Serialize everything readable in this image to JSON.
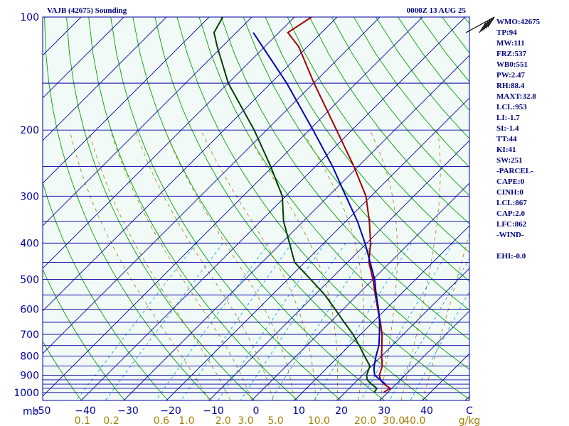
{
  "header": {
    "station": "VAJB (42675) Sounding",
    "time": "0000Z 13 AUG 25"
  },
  "indices": [
    "WMO:42675",
    "TP:94",
    "MW:111",
    "FRZ:537",
    "WB0:551",
    "PW:2.47",
    "RH:88.4",
    "MAXT:32.8",
    "LCL:953",
    "LI:-1.7",
    "SI:-1.4",
    "TT:44",
    "KI:41",
    "SW:251",
    "-PARCEL-",
    "CAPE:0",
    "CINH:0",
    "LCL:867",
    "CAP:2.0",
    "LFC:862",
    "-WIND-",
    "",
    "EHI:-0.0"
  ],
  "colors": {
    "background": "#f2faf8",
    "isobar": "#0000a0",
    "isotherm": "#0000a0",
    "dry_adiabat": "#00a000",
    "moist_adiabat": "#a08000",
    "mixing_ratio": "#00a0d0",
    "temperature": "#a00000",
    "dewpoint": "#004000",
    "parcel": "#0000b0",
    "tick_label": "#0000a0",
    "mixing_label": "#a08000"
  },
  "chart_data": {
    "type": "skew-t",
    "ylabel": "mb",
    "xlabel": "",
    "pressure_levels": [
      100,
      150,
      200,
      250,
      300,
      350,
      400,
      450,
      500,
      550,
      600,
      650,
      700,
      750,
      800,
      850,
      900,
      925,
      950,
      975,
      1000
    ],
    "pressure_tick_labels": [
      "100",
      "200",
      "300",
      "400",
      "500",
      "600",
      "700",
      "800",
      "900",
      "1000"
    ],
    "temperature_ticks": [
      -50,
      -40,
      -30,
      -20,
      -10,
      0,
      10,
      20,
      30,
      40
    ],
    "temperature_tick_labels": [
      "-50",
      "−40",
      "−30",
      "−20",
      "−10",
      "0",
      "10",
      "20",
      "30",
      "40"
    ],
    "end_tick_label": "C",
    "mixing_ratio_values": [
      0.1,
      0.2,
      0.6,
      1.0,
      2.0,
      3.0,
      5.0,
      10.0,
      20.0,
      30.0,
      40.0
    ],
    "mixing_ratio_labels": [
      "0.1",
      "0.2",
      "0.6",
      "1.0",
      "2.0",
      "3.0",
      "5.0",
      "10.0",
      "20.0",
      "30.0",
      "40.0"
    ],
    "mixing_ratio_unit": "g/kg",
    "temperature_unit": "C",
    "series": [
      {
        "name": "temperature",
        "points": [
          [
            1000,
            29.0
          ],
          [
            975,
            29.6
          ],
          [
            950,
            27.2
          ],
          [
            925,
            25.3
          ],
          [
            900,
            24.0
          ],
          [
            850,
            22.5
          ],
          [
            800,
            20.0
          ],
          [
            750,
            17.6
          ],
          [
            700,
            15.0
          ],
          [
            650,
            11.8
          ],
          [
            600,
            8.1
          ],
          [
            550,
            4.2
          ],
          [
            500,
            0.0
          ],
          [
            450,
            -5.0
          ],
          [
            400,
            -9.1
          ],
          [
            350,
            -14.5
          ],
          [
            300,
            -21.2
          ],
          [
            250,
            -31.0
          ],
          [
            200,
            -43.6
          ],
          [
            150,
            -59.9
          ],
          [
            120,
            -72.0
          ],
          [
            110,
            -77.9
          ],
          [
            100,
            -76.0
          ]
        ]
      },
      {
        "name": "dewpoint",
        "points": [
          [
            1000,
            26.8
          ],
          [
            975,
            26.5
          ],
          [
            950,
            24.2
          ],
          [
            925,
            22.2
          ],
          [
            900,
            21.0
          ],
          [
            850,
            19.6
          ],
          [
            800,
            16.0
          ],
          [
            750,
            12.3
          ],
          [
            700,
            8.2
          ],
          [
            650,
            3.3
          ],
          [
            600,
            -1.9
          ],
          [
            550,
            -7.6
          ],
          [
            500,
            -14.6
          ],
          [
            450,
            -22.4
          ],
          [
            400,
            -28.1
          ],
          [
            350,
            -34.6
          ],
          [
            300,
            -40.8
          ],
          [
            250,
            -50.5
          ],
          [
            200,
            -62.9
          ],
          [
            150,
            -80.0
          ],
          [
            120,
            -91.1
          ],
          [
            110,
            -95.2
          ],
          [
            100,
            -96.8
          ]
        ]
      },
      {
        "name": "parcel",
        "points": [
          [
            950,
            27.5
          ],
          [
            900,
            22.9
          ],
          [
            867,
            21.3
          ],
          [
            850,
            20.6
          ],
          [
            800,
            18.7
          ],
          [
            750,
            16.9
          ],
          [
            700,
            14.4
          ],
          [
            650,
            11.6
          ],
          [
            600,
            8.3
          ],
          [
            550,
            4.4
          ],
          [
            500,
            0.4
          ],
          [
            450,
            -4.7
          ],
          [
            400,
            -10.4
          ],
          [
            350,
            -17.3
          ],
          [
            300,
            -25.9
          ],
          [
            250,
            -36.0
          ],
          [
            200,
            -49.1
          ],
          [
            150,
            -66.3
          ],
          [
            110,
            -86.0
          ]
        ]
      }
    ]
  }
}
